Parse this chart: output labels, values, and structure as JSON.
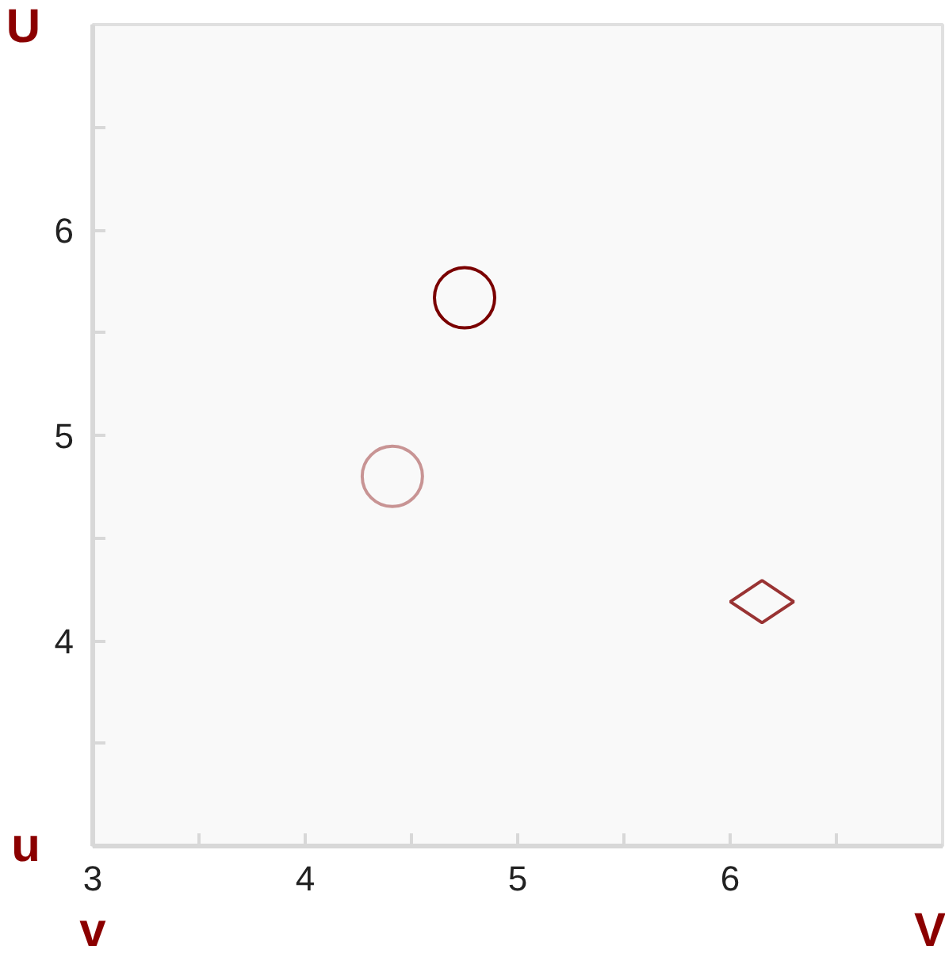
{
  "chart_data": {
    "type": "scatter",
    "series": [
      {
        "color": "#7a0000",
        "marker": "circle",
        "x": [
          4.75
        ],
        "values": [
          5.67
        ]
      },
      {
        "color": "#c89494",
        "marker": "circle",
        "x": [
          4.41
        ],
        "values": [
          4.8
        ]
      },
      {
        "color": "#993333",
        "marker": "diamond",
        "x": [
          6.15
        ],
        "values": [
          4.19
        ]
      }
    ],
    "xlim": [
      3,
      7
    ],
    "ylim": [
      3,
      7
    ],
    "xticks": [
      3,
      {
        "value": 3.5,
        "label": null
      },
      4,
      {
        "value": 4.5,
        "label": null
      },
      5,
      {
        "value": 5.5,
        "label": null
      },
      6,
      {
        "value": 6.5,
        "label": null
      }
    ],
    "yticks": [
      {
        "value": 3.5,
        "label": null
      },
      4,
      {
        "value": 4.5,
        "label": null
      },
      5,
      {
        "value": 5.5,
        "label": null
      },
      6,
      {
        "value": 6.5,
        "label": null
      }
    ],
    "annotations": [
      "U",
      "u",
      "v",
      "V"
    ],
    "grid": false
  }
}
